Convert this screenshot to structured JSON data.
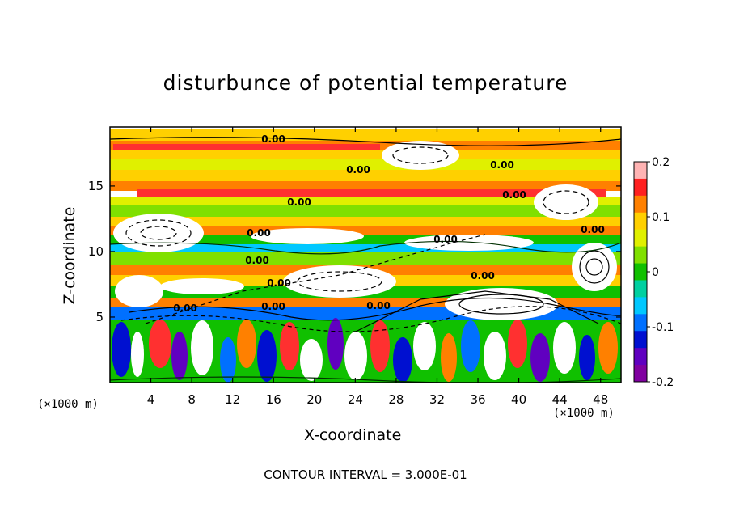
{
  "chart_data": {
    "type": "heatmap",
    "title": "disturbunce of potential temperature",
    "xlabel": "X-coordinate",
    "ylabel": "Z-coordinate",
    "x_unit_label": "(×1000 m)",
    "xlim": [
      0,
      50
    ],
    "ylim": [
      0,
      19.5
    ],
    "x_ticks": [
      4,
      8,
      12,
      16,
      20,
      24,
      28,
      32,
      36,
      40,
      44,
      48
    ],
    "y_ticks": [
      5,
      10,
      15
    ],
    "colorbar": {
      "range": [
        -0.2,
        0.2
      ],
      "ticks": [
        "0.2",
        "0.1",
        "0",
        "-0.1",
        "-0.2"
      ],
      "tick_values": [
        0.2,
        0.1,
        0,
        -0.1,
        -0.2
      ],
      "colors": [
        "#ffb3b3",
        "#ff2020",
        "#ff8000",
        "#ffd000",
        "#e0f000",
        "#80e000",
        "#10c000",
        "#00d0a0",
        "#00c8ff",
        "#0070ff",
        "#0010d0",
        "#6000c0",
        "#8000a0"
      ]
    },
    "contour_labels": [
      "0.00",
      "0.00",
      "0.00",
      "0.00",
      "0.00",
      "0.00",
      "0.00",
      "0.00",
      "0.00",
      "0.00",
      "0.00",
      "0.00",
      "0.00",
      "0.00"
    ],
    "contour_interval_text": "CONTOUR INTERVAL = 3.000E-01"
  }
}
